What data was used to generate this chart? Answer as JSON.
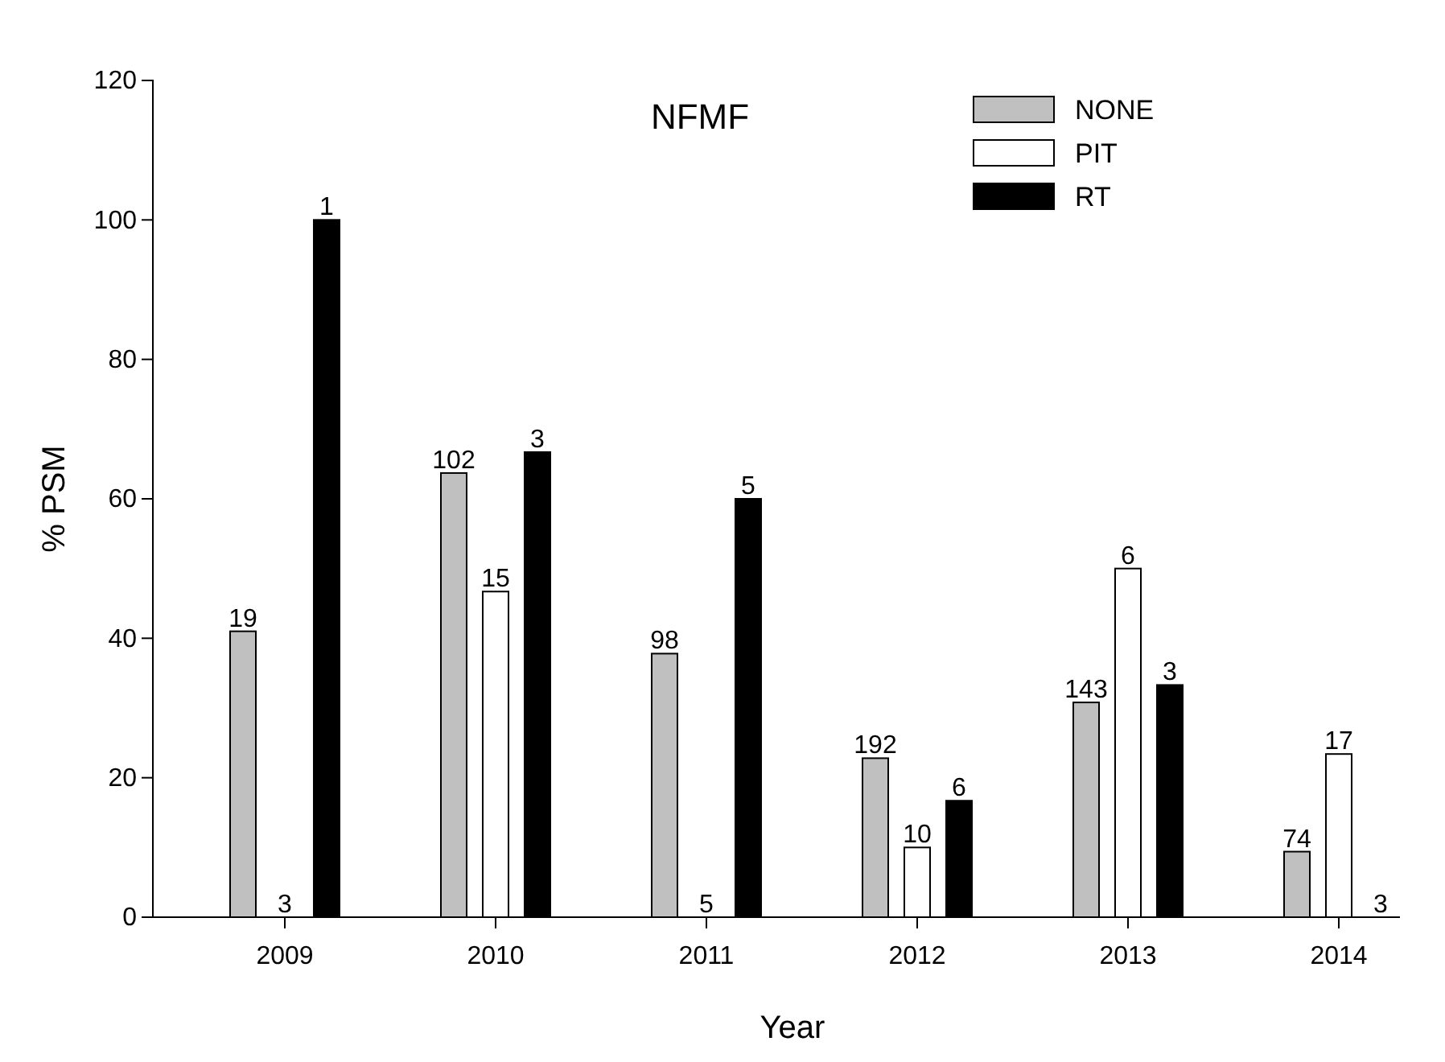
{
  "chart_data": {
    "type": "bar",
    "title": "NFMF",
    "xlabel": "Year",
    "ylabel": "% PSM",
    "categories": [
      "2009",
      "2010",
      "2011",
      "2012",
      "2013",
      "2014"
    ],
    "series": [
      {
        "name": "NONE",
        "color": "#c0c0c0",
        "values": [
          41,
          63.7,
          37.8,
          22.8,
          30.8,
          9.4
        ]
      },
      {
        "name": "PIT",
        "color": "#ffffff",
        "values": [
          0,
          46.7,
          0,
          10,
          50,
          23.4
        ]
      },
      {
        "name": "RT",
        "color": "#000000",
        "values": [
          100,
          66.7,
          60,
          16.7,
          33.3,
          0
        ]
      }
    ],
    "annotations": [
      "19",
      "3",
      "1",
      "102",
      "15",
      "3",
      "98",
      "5",
      "5",
      "192",
      "10",
      "6",
      "143",
      "6",
      "3",
      "74",
      "17",
      "3"
    ],
    "ylim": [
      0,
      120
    ],
    "yticks": [
      0,
      20,
      40,
      60,
      80,
      100,
      120
    ],
    "grid": false,
    "legend": "top right"
  }
}
